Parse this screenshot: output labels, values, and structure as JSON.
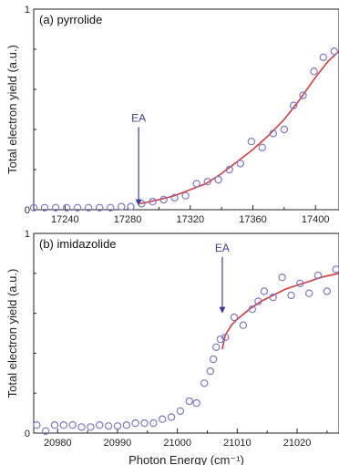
{
  "colors": {
    "marker": "#7b79c8",
    "fit": "#d83a3a",
    "arrow": "#3c3c9a",
    "axis": "#222222"
  },
  "chart_data": [
    {
      "type": "scatter",
      "panel_label": "(a) pyrrolide",
      "ylabel": "Total electron yield (a.u.)",
      "xlabel": "",
      "xlim": [
        17220,
        17415
      ],
      "ylim": [
        0,
        1
      ],
      "xticks": [
        17240,
        17280,
        17320,
        17360,
        17400
      ],
      "yticks": [
        0,
        1
      ],
      "grid": false,
      "annotation": {
        "text": "EA",
        "x": 17287,
        "y_top": 0.43,
        "y_bottom": 0.02
      },
      "points": [
        {
          "x": 17220,
          "y": 0.01
        },
        {
          "x": 17227,
          "y": 0.01
        },
        {
          "x": 17234,
          "y": 0.01
        },
        {
          "x": 17241,
          "y": 0.01
        },
        {
          "x": 17248,
          "y": 0.01
        },
        {
          "x": 17255,
          "y": 0.01
        },
        {
          "x": 17262,
          "y": 0.01
        },
        {
          "x": 17269,
          "y": 0.01
        },
        {
          "x": 17276,
          "y": 0.015
        },
        {
          "x": 17282,
          "y": 0.015
        },
        {
          "x": 17289,
          "y": 0.03
        },
        {
          "x": 17296,
          "y": 0.04
        },
        {
          "x": 17303,
          "y": 0.05
        },
        {
          "x": 17310,
          "y": 0.06
        },
        {
          "x": 17317,
          "y": 0.07
        },
        {
          "x": 17324,
          "y": 0.13
        },
        {
          "x": 17331,
          "y": 0.14
        },
        {
          "x": 17338,
          "y": 0.15
        },
        {
          "x": 17345,
          "y": 0.2
        },
        {
          "x": 17352,
          "y": 0.23
        },
        {
          "x": 17359,
          "y": 0.34
        },
        {
          "x": 17366,
          "y": 0.31
        },
        {
          "x": 17373,
          "y": 0.38
        },
        {
          "x": 17380,
          "y": 0.4
        },
        {
          "x": 17386,
          "y": 0.52
        },
        {
          "x": 17392,
          "y": 0.57
        },
        {
          "x": 17399,
          "y": 0.69
        },
        {
          "x": 17405,
          "y": 0.76
        },
        {
          "x": 17412,
          "y": 0.79
        }
      ],
      "fit": [
        {
          "x": 17288,
          "y": 0.03
        },
        {
          "x": 17300,
          "y": 0.05
        },
        {
          "x": 17310,
          "y": 0.07
        },
        {
          "x": 17320,
          "y": 0.1
        },
        {
          "x": 17330,
          "y": 0.13
        },
        {
          "x": 17340,
          "y": 0.18
        },
        {
          "x": 17350,
          "y": 0.24
        },
        {
          "x": 17360,
          "y": 0.3
        },
        {
          "x": 17370,
          "y": 0.37
        },
        {
          "x": 17380,
          "y": 0.45
        },
        {
          "x": 17390,
          "y": 0.55
        },
        {
          "x": 17400,
          "y": 0.66
        },
        {
          "x": 17408,
          "y": 0.74
        },
        {
          "x": 17415,
          "y": 0.79
        }
      ]
    },
    {
      "type": "scatter",
      "panel_label": "(b) imidazolide",
      "ylabel": "Total electron yield (a.u.)",
      "xlabel": "Photon Energy (cm⁻¹)",
      "xlim": [
        20976,
        21027
      ],
      "ylim": [
        0,
        1
      ],
      "xticks": [
        20980,
        20990,
        21000,
        21010,
        21020
      ],
      "yticks": [
        0,
        1
      ],
      "grid": false,
      "annotation": {
        "text": "EA",
        "x": 21007.5,
        "y_top": 0.9,
        "y_bottom": 0.6
      },
      "points": [
        {
          "x": 20976.5,
          "y": 0.04
        },
        {
          "x": 20978,
          "y": 0.01
        },
        {
          "x": 20979.5,
          "y": 0.04
        },
        {
          "x": 20981,
          "y": 0.04
        },
        {
          "x": 20982.5,
          "y": 0.04
        },
        {
          "x": 20984,
          "y": 0.03
        },
        {
          "x": 20985.5,
          "y": 0.03
        },
        {
          "x": 20987,
          "y": 0.04
        },
        {
          "x": 20988.5,
          "y": 0.035
        },
        {
          "x": 20990,
          "y": 0.035
        },
        {
          "x": 20991.5,
          "y": 0.04
        },
        {
          "x": 20993,
          "y": 0.05
        },
        {
          "x": 20994.5,
          "y": 0.05
        },
        {
          "x": 20996,
          "y": 0.05
        },
        {
          "x": 20997.5,
          "y": 0.07
        },
        {
          "x": 20999,
          "y": 0.08
        },
        {
          "x": 21000.5,
          "y": 0.11
        },
        {
          "x": 21002,
          "y": 0.16
        },
        {
          "x": 21003.2,
          "y": 0.15
        },
        {
          "x": 21004.5,
          "y": 0.25
        },
        {
          "x": 21005.5,
          "y": 0.31
        },
        {
          "x": 21006,
          "y": 0.37
        },
        {
          "x": 21006.5,
          "y": 0.43
        },
        {
          "x": 21007.2,
          "y": 0.47
        },
        {
          "x": 21008,
          "y": 0.48
        },
        {
          "x": 21009.5,
          "y": 0.58
        },
        {
          "x": 21011,
          "y": 0.54
        },
        {
          "x": 21012.5,
          "y": 0.62
        },
        {
          "x": 21013.5,
          "y": 0.66
        },
        {
          "x": 21014.5,
          "y": 0.71
        },
        {
          "x": 21016,
          "y": 0.68
        },
        {
          "x": 21017.5,
          "y": 0.78
        },
        {
          "x": 21019,
          "y": 0.69
        },
        {
          "x": 21020.5,
          "y": 0.75
        },
        {
          "x": 21022,
          "y": 0.7
        },
        {
          "x": 21023.5,
          "y": 0.79
        },
        {
          "x": 21025,
          "y": 0.71
        },
        {
          "x": 21026.5,
          "y": 0.82
        }
      ],
      "fit": [
        {
          "x": 21007.5,
          "y": 0.42
        },
        {
          "x": 21008,
          "y": 0.49
        },
        {
          "x": 21009,
          "y": 0.54
        },
        {
          "x": 21010,
          "y": 0.57
        },
        {
          "x": 21012,
          "y": 0.62
        },
        {
          "x": 21014,
          "y": 0.66
        },
        {
          "x": 21016,
          "y": 0.69
        },
        {
          "x": 21018,
          "y": 0.72
        },
        {
          "x": 21020,
          "y": 0.74
        },
        {
          "x": 21022,
          "y": 0.76
        },
        {
          "x": 21024,
          "y": 0.78
        },
        {
          "x": 21027,
          "y": 0.8
        }
      ]
    }
  ]
}
